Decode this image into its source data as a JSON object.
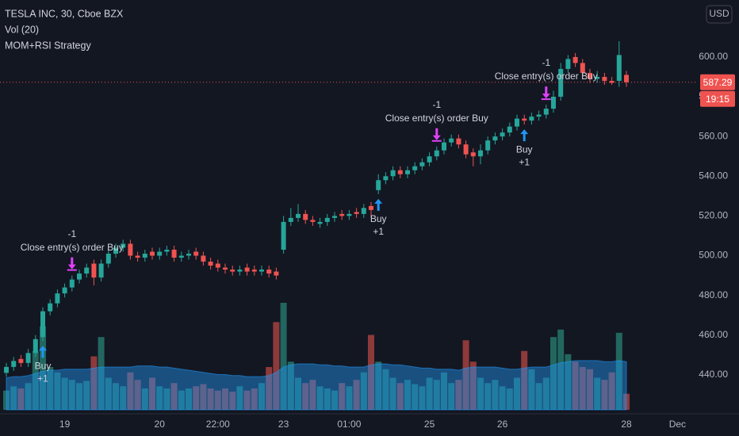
{
  "chart_data": {
    "type": "candlestick",
    "title": "TESLA INC, 30, Cboe BZX",
    "indicators": [
      "Vol (20)",
      "MOM+RSI Strategy"
    ],
    "currency": "USD",
    "countdown": "19:15",
    "categories": [
      null,
      null,
      null,
      null,
      null,
      null,
      null,
      null,
      "19",
      null,
      null,
      null,
      null,
      null,
      null,
      null,
      null,
      null,
      null,
      null,
      null,
      "20",
      null,
      null,
      null,
      null,
      null,
      null,
      null,
      "22:00",
      null,
      null,
      null,
      null,
      null,
      null,
      null,
      null,
      "23",
      null,
      null,
      null,
      null,
      null,
      null,
      null,
      null,
      "01:00",
      null,
      null,
      null,
      null,
      null,
      null,
      null,
      null,
      null,
      null,
      "25",
      null,
      null,
      null,
      null,
      null,
      null,
      null,
      null,
      null,
      "26",
      null,
      null,
      null,
      null,
      null,
      null,
      null,
      null,
      null,
      null,
      null,
      null,
      null,
      null,
      null,
      null,
      "28",
      null,
      null,
      null,
      null,
      null,
      null,
      "Dec"
    ],
    "open": [
      441,
      444,
      448,
      446,
      451,
      459,
      472,
      476,
      481,
      484,
      488,
      491,
      496,
      489,
      496,
      501,
      504,
      506,
      500,
      499,
      502,
      500,
      502,
      503,
      499,
      500,
      502,
      500,
      497,
      496,
      494,
      493,
      492,
      494,
      493,
      492,
      493,
      492,
      503,
      517,
      519,
      521,
      518,
      516,
      517,
      519,
      521,
      520,
      522,
      521,
      525,
      533,
      538,
      540,
      543,
      541,
      543,
      545,
      547,
      550,
      553,
      557,
      559,
      556,
      552,
      550,
      553,
      558,
      560,
      562,
      565,
      569,
      568,
      570,
      571,
      574,
      580,
      594,
      600,
      597,
      592,
      589,
      590,
      588,
      588,
      591,
      null,
      null,
      null,
      null,
      null,
      null,
      null
    ],
    "high": [
      446,
      449,
      450,
      453,
      460,
      474,
      478,
      483,
      486,
      490,
      493,
      496,
      498,
      498,
      503,
      506,
      508,
      508,
      502,
      503,
      504,
      504,
      505,
      505,
      502,
      503,
      504,
      502,
      499,
      498,
      496,
      495,
      495,
      496,
      495,
      495,
      495,
      494,
      520,
      524,
      526,
      523,
      520,
      519,
      521,
      522,
      523,
      523,
      524,
      526,
      527,
      541,
      542,
      545,
      545,
      545,
      547,
      549,
      552,
      555,
      559,
      561,
      561,
      558,
      554,
      556,
      560,
      562,
      564,
      567,
      571,
      571,
      572,
      573,
      576,
      583,
      597,
      601,
      602,
      599,
      594,
      593,
      592,
      590,
      608,
      593,
      null,
      null,
      null,
      null,
      null,
      null,
      null
    ],
    "low": [
      439,
      442,
      444,
      444,
      449,
      457,
      470,
      474,
      479,
      482,
      486,
      489,
      485,
      487,
      494,
      499,
      502,
      498,
      497,
      497,
      498,
      498,
      500,
      497,
      497,
      498,
      498,
      495,
      493,
      492,
      491,
      490,
      490,
      490,
      490,
      490,
      489,
      488,
      501,
      515,
      517,
      516,
      515,
      514,
      515,
      517,
      518,
      518,
      519,
      519,
      519,
      531,
      536,
      538,
      539,
      539,
      541,
      543,
      545,
      548,
      551,
      555,
      554,
      549,
      545,
      546,
      551,
      556,
      558,
      560,
      563,
      566,
      566,
      568,
      569,
      572,
      578,
      592,
      595,
      590,
      587,
      587,
      586,
      586,
      585,
      585,
      null,
      null,
      null,
      null,
      null,
      null,
      null
    ],
    "close": [
      444,
      447,
      446,
      451,
      458,
      472,
      476,
      481,
      484,
      488,
      491,
      494,
      489,
      496,
      501,
      504,
      506,
      500,
      499,
      501,
      500,
      502,
      503,
      499,
      500,
      501,
      500,
      497,
      495,
      494,
      493,
      492,
      493,
      492,
      492,
      493,
      491,
      490,
      517,
      519,
      521,
      518,
      517,
      517,
      519,
      520,
      520,
      521,
      521,
      524,
      523,
      538,
      540,
      543,
      541,
      543,
      545,
      547,
      550,
      553,
      557,
      559,
      556,
      551,
      550,
      553,
      558,
      560,
      562,
      565,
      569,
      568,
      570,
      571,
      574,
      580,
      594,
      599,
      597,
      592,
      589,
      590,
      588,
      587,
      601,
      587.29,
      null,
      null,
      null,
      null,
      null,
      null,
      null
    ],
    "volume": [
      18,
      22,
      20,
      25,
      55,
      78,
      40,
      35,
      30,
      28,
      25,
      27,
      50,
      68,
      30,
      25,
      22,
      35,
      28,
      20,
      30,
      22,
      20,
      25,
      18,
      20,
      22,
      24,
      20,
      18,
      20,
      17,
      22,
      18,
      20,
      25,
      40,
      82,
      100,
      45,
      30,
      25,
      28,
      22,
      20,
      18,
      25,
      22,
      28,
      35,
      70,
      45,
      38,
      30,
      25,
      28,
      24,
      22,
      30,
      28,
      35,
      25,
      28,
      65,
      45,
      30,
      25,
      28,
      22,
      20,
      30,
      55,
      38,
      25,
      30,
      68,
      75,
      52,
      45,
      40,
      38,
      30,
      28,
      35,
      72,
      15,
      null,
      null,
      null,
      null,
      null,
      null,
      null
    ],
    "volume_ma": [
      30,
      31,
      31,
      32,
      34,
      36,
      37,
      37,
      38,
      38,
      38,
      38,
      39,
      40,
      40,
      40,
      40,
      40,
      41,
      41,
      41,
      40,
      40,
      39,
      38,
      37,
      36,
      35,
      34,
      33,
      33,
      32,
      32,
      31,
      31,
      31,
      32,
      35,
      40,
      42,
      43,
      43,
      43,
      42,
      42,
      41,
      41,
      40,
      40,
      40,
      42,
      43,
      43,
      42,
      42,
      41,
      40,
      39,
      39,
      38,
      38,
      38,
      37,
      39,
      40,
      40,
      40,
      40,
      39,
      38,
      38,
      39,
      40,
      40,
      40,
      42,
      44,
      45,
      46,
      46,
      46,
      46,
      45,
      45,
      46,
      45,
      null,
      null,
      null,
      null,
      null,
      null,
      null
    ],
    "up_color": "#26a69a",
    "down_color": "#ef5350",
    "volume_up_color": "#22675f",
    "volume_down_color": "#8e3a3a",
    "volume_ma_color": "#2196f3",
    "ylim": [
      420.4,
      628.7
    ],
    "vlim": [
      0,
      100
    ],
    "yticks": [
      {
        "value": 440,
        "label": "440.00"
      },
      {
        "value": 460,
        "label": "460.00"
      },
      {
        "value": 480,
        "label": "480.00"
      },
      {
        "value": 500,
        "label": "500.00"
      },
      {
        "value": 520,
        "label": "520.00"
      },
      {
        "value": 540,
        "label": "540.00"
      },
      {
        "value": 560,
        "label": "560.00"
      },
      {
        "value": 580,
        "label": "580.00"
      },
      {
        "value": 600,
        "label": "600.00"
      }
    ],
    "trades": [
      {
        "bar": 5,
        "kind": "entry",
        "label": "Buy",
        "qty": "+1"
      },
      {
        "bar": 9,
        "kind": "exit",
        "label": "Close entry(s) order Buy",
        "qty": "-1"
      },
      {
        "bar": 51,
        "kind": "entry",
        "label": "Buy",
        "qty": "+1"
      },
      {
        "bar": 59,
        "kind": "exit",
        "label": "Close entry(s) order Buy",
        "qty": "-1"
      },
      {
        "bar": 71,
        "kind": "entry",
        "label": "Buy",
        "qty": "+1"
      },
      {
        "bar": 74,
        "kind": "exit",
        "label": "Close entry(s) order Buy",
        "qty": "-1"
      }
    ]
  }
}
